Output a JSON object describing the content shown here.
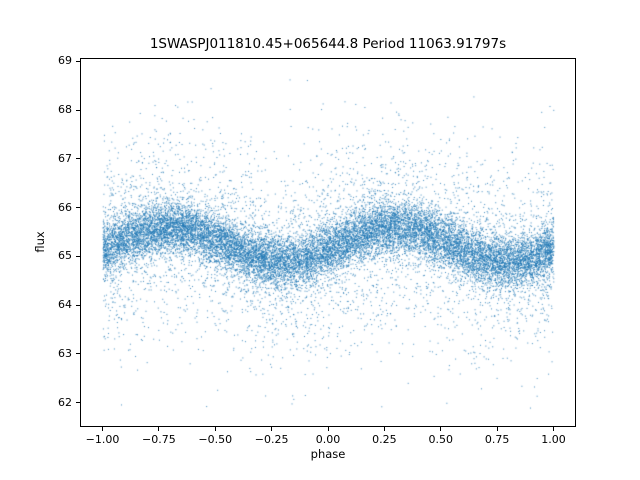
{
  "chart_data": {
    "type": "scatter",
    "title": "1SWASPJ011810.45+065644.8 Period 11063.91797s",
    "xlabel": "phase",
    "ylabel": "flux",
    "xlim": [
      -1.1,
      1.1
    ],
    "ylim": [
      61.5,
      69.07
    ],
    "x_ticks": [
      {
        "value": -1.0,
        "label": "−1.00"
      },
      {
        "value": -0.75,
        "label": "−0.75"
      },
      {
        "value": -0.5,
        "label": "−0.50"
      },
      {
        "value": -0.25,
        "label": "−0.25"
      },
      {
        "value": 0.0,
        "label": "0.00"
      },
      {
        "value": 0.25,
        "label": "0.25"
      },
      {
        "value": 0.5,
        "label": "0.50"
      },
      {
        "value": 0.75,
        "label": "0.75"
      },
      {
        "value": 1.0,
        "label": "1.00"
      }
    ],
    "y_ticks": [
      {
        "value": 62,
        "label": "62"
      },
      {
        "value": 63,
        "label": "63"
      },
      {
        "value": 64,
        "label": "64"
      },
      {
        "value": 65,
        "label": "65"
      },
      {
        "value": 66,
        "label": "66"
      },
      {
        "value": 67,
        "label": "67"
      },
      {
        "value": 68,
        "label": "68"
      },
      {
        "value": 69,
        "label": "69"
      }
    ],
    "marker_color": "#1f77b4",
    "background_color": "#ffffff",
    "n_points": 20000,
    "points_model": {
      "kind": "phase-folded-sinusoid-with-gaussian-noise",
      "x_distribution": "uniform[-1,1]",
      "mean_flux": 65.25,
      "amplitude": 0.35,
      "phase_of_max": 0.3,
      "core_sigma": 0.27,
      "tail_fraction": 0.22,
      "tail_sigma": 1.05,
      "flux_min": 61.8,
      "flux_max": 68.65,
      "seed": 7
    }
  }
}
